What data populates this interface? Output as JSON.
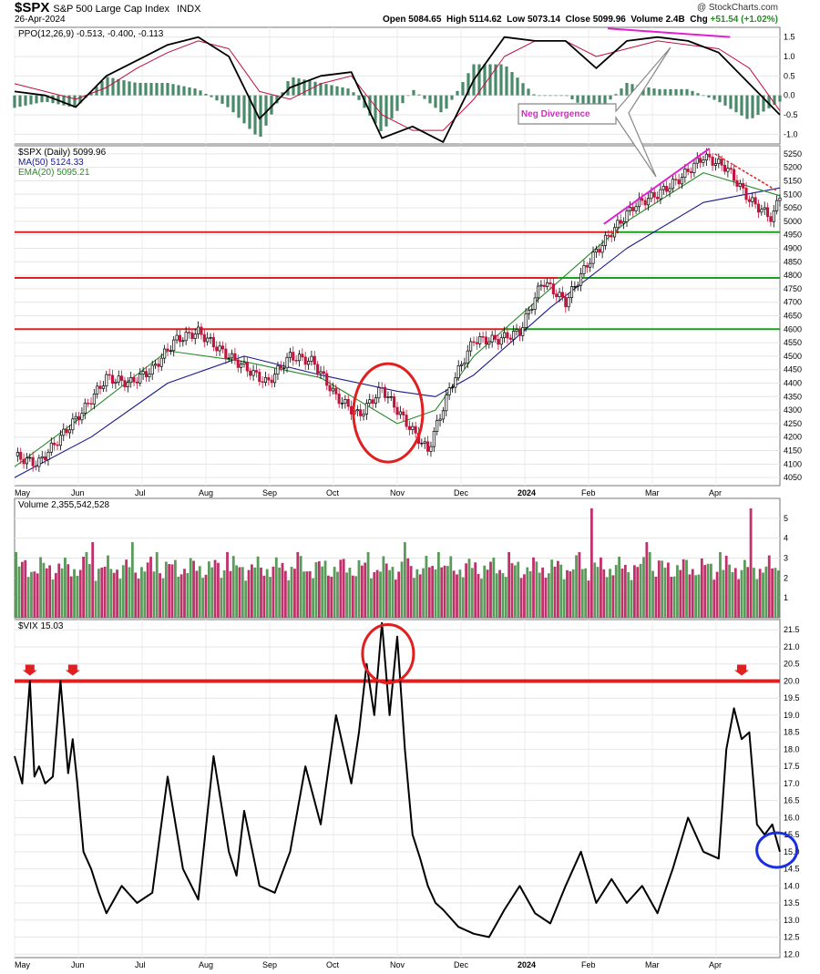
{
  "header": {
    "symbol": "$SPX",
    "name": "S&P 500 Large Cap Index",
    "exchange": "INDX",
    "date": "26-Apr-2024",
    "open_label": "Open",
    "open": "5084.65",
    "high_label": "High",
    "high": "5114.62",
    "low_label": "Low",
    "low": "5073.14",
    "close_label": "Close",
    "close": "5099.96",
    "volume_label": "Volume",
    "volume": "2.4B",
    "chg_label": "Chg",
    "chg": "+51.54 (+1.02%)",
    "copyright": "@ StockCharts.com"
  },
  "colors": {
    "up": "#2a8a2a",
    "down": "#c0143c",
    "ma50": "#1a1a8c",
    "ema20": "#2a8a2a",
    "resistance": "#e02020",
    "support": "#1aa01a",
    "divergence": "#e020d0",
    "vix_line": "#000000",
    "ppo_line": "#000000",
    "ppo_signal": "#c01040",
    "hist": "#4a8a6a",
    "vol_up": "#5a9a5a",
    "vol_down": "#c0306a",
    "circle_red": "#e02020",
    "circle_blue": "#1a30e0"
  },
  "annotation": {
    "neg_divergence": "Neg Divergence"
  },
  "chart_data": [
    {
      "type": "line",
      "panel": "ppo",
      "legend": [
        "PPO(12,26,9) -0.513, -0.400, -0.113"
      ],
      "ylim": [
        -1.25,
        1.75
      ],
      "yticks": [
        "1.5",
        "1.0",
        "0.5",
        "0.0",
        "-0.5",
        "-1.0"
      ],
      "series": [
        {
          "name": "PPO",
          "x": [
            0,
            4,
            8,
            12,
            16,
            20,
            24,
            28,
            32,
            36,
            40,
            44,
            48,
            52,
            56,
            60,
            64,
            68,
            72,
            76,
            80,
            84,
            88,
            92,
            96,
            100
          ],
          "values": [
            0.1,
            0.0,
            -0.3,
            0.5,
            0.9,
            1.3,
            1.5,
            1.0,
            -0.6,
            0.2,
            0.5,
            0.6,
            -1.1,
            -0.8,
            -1.2,
            0.4,
            1.5,
            1.4,
            1.4,
            0.7,
            1.4,
            1.5,
            1.4,
            1.1,
            0.3,
            -0.5
          ]
        },
        {
          "name": "Signal",
          "x": [
            0,
            4,
            8,
            12,
            16,
            20,
            24,
            28,
            32,
            36,
            40,
            44,
            48,
            52,
            56,
            60,
            64,
            68,
            72,
            76,
            80,
            84,
            88,
            92,
            96,
            100
          ],
          "values": [
            0.3,
            0.1,
            -0.1,
            0.2,
            0.7,
            1.1,
            1.4,
            1.2,
            0.1,
            -0.1,
            0.3,
            0.5,
            -0.5,
            -0.9,
            -0.9,
            -0.1,
            1.0,
            1.4,
            1.4,
            1.0,
            1.2,
            1.4,
            1.3,
            1.2,
            0.7,
            -0.4
          ]
        }
      ]
    },
    {
      "type": "line",
      "panel": "price",
      "legend": [
        "$SPX (Daily) 5099.96",
        "MA(50) 5124.33",
        "EMA(20) 5095.21"
      ],
      "ylim": [
        4020,
        5280
      ],
      "yticks": [
        "5250",
        "5200",
        "5150",
        "5100",
        "5050",
        "5000",
        "4950",
        "4900",
        "4850",
        "4800",
        "4750",
        "4700",
        "4650",
        "4600",
        "4550",
        "4500",
        "4450",
        "4400",
        "4350",
        "4300",
        "4250",
        "4200",
        "4150",
        "4100",
        "4050"
      ],
      "months": [
        "May",
        "Jun",
        "Jul",
        "Aug",
        "Sep",
        "Oct",
        "Nov",
        "Dec",
        "2024",
        "Feb",
        "Mar",
        "Apr"
      ],
      "resistance_levels": [
        4960,
        4790,
        4600
      ],
      "series": [
        {
          "name": "$SPX",
          "x": [
            0,
            3,
            6,
            9,
            12,
            15,
            18,
            21,
            24,
            27,
            30,
            33,
            36,
            39,
            42,
            45,
            48,
            51,
            54,
            57,
            60,
            63,
            66,
            69,
            72,
            75,
            78,
            81,
            84,
            87,
            90,
            93,
            96,
            99,
            100
          ],
          "values": [
            4130,
            4100,
            4200,
            4300,
            4420,
            4400,
            4450,
            4560,
            4590,
            4520,
            4460,
            4400,
            4500,
            4480,
            4350,
            4280,
            4380,
            4260,
            4150,
            4390,
            4560,
            4560,
            4590,
            4780,
            4700,
            4850,
            4960,
            5060,
            5100,
            5160,
            5240,
            5200,
            5080,
            5010,
            5100
          ]
        },
        {
          "name": "MA(50)",
          "x": [
            0,
            10,
            20,
            30,
            40,
            50,
            55,
            60,
            70,
            80,
            90,
            100
          ],
          "values": [
            4050,
            4200,
            4400,
            4500,
            4430,
            4370,
            4350,
            4430,
            4680,
            4900,
            5070,
            5124
          ]
        },
        {
          "name": "EMA(20)",
          "x": [
            0,
            10,
            20,
            30,
            40,
            50,
            55,
            60,
            70,
            80,
            90,
            100
          ],
          "values": [
            4090,
            4300,
            4520,
            4480,
            4420,
            4250,
            4300,
            4500,
            4750,
            5000,
            5180,
            5095
          ]
        }
      ]
    },
    {
      "type": "bar",
      "panel": "volume",
      "legend": [
        "Volume 2,355,542,528"
      ],
      "ylim": [
        0,
        6
      ],
      "yticks": [
        "5B",
        "4B",
        "3B",
        "2B",
        "1B"
      ]
    },
    {
      "type": "line",
      "panel": "vix",
      "legend": [
        "$VIX 15.03"
      ],
      "ylim": [
        11.9,
        21.8
      ],
      "yticks": [
        "21.5",
        "21.0",
        "20.5",
        "20.0",
        "19.5",
        "19.0",
        "18.5",
        "18.0",
        "17.5",
        "17.0",
        "16.5",
        "16.0",
        "15.5",
        "15.0",
        "14.5",
        "14.0",
        "13.5",
        "13.0",
        "12.5",
        "12.0"
      ],
      "months": [
        "May",
        "Jun",
        "Jul",
        "Aug",
        "Sep",
        "Oct",
        "Nov",
        "Dec",
        "2024",
        "Feb",
        "Mar",
        "Apr"
      ],
      "threshold": 20.0,
      "series": [
        {
          "name": "$VIX",
          "x": [
            0,
            1,
            2,
            2.6,
            3.2,
            4,
            5,
            6,
            7,
            7.6,
            8.2,
            9,
            10,
            11,
            12,
            14,
            16,
            18,
            20,
            22,
            24,
            26,
            28,
            29,
            30,
            32,
            34,
            36,
            38,
            40,
            42,
            44,
            45,
            46,
            47,
            48,
            49,
            50,
            51,
            52,
            53,
            54,
            55,
            56,
            58,
            60,
            62,
            64,
            66,
            68,
            70,
            72,
            74,
            76,
            78,
            80,
            82,
            84,
            86,
            88,
            90,
            92,
            93,
            94,
            95,
            96,
            97,
            98,
            99,
            100
          ],
          "values": [
            17.8,
            17.0,
            20.0,
            17.2,
            17.5,
            17.0,
            17.2,
            20.0,
            17.3,
            18.3,
            17.0,
            15.0,
            14.5,
            13.8,
            13.2,
            14.0,
            13.5,
            13.8,
            17.2,
            14.5,
            13.6,
            17.8,
            15.0,
            14.3,
            16.2,
            14.0,
            13.8,
            15.0,
            17.5,
            15.8,
            19.0,
            17.0,
            18.5,
            20.5,
            19.0,
            21.7,
            19.0,
            21.3,
            18.0,
            15.5,
            14.8,
            14.0,
            13.5,
            13.3,
            12.8,
            12.6,
            12.5,
            13.3,
            14.0,
            13.2,
            12.9,
            14.0,
            15.0,
            13.5,
            14.2,
            13.5,
            14.0,
            13.2,
            14.5,
            16.0,
            15.0,
            14.8,
            18.0,
            19.2,
            18.3,
            18.5,
            15.8,
            15.5,
            15.8,
            15.0
          ]
        }
      ]
    }
  ]
}
